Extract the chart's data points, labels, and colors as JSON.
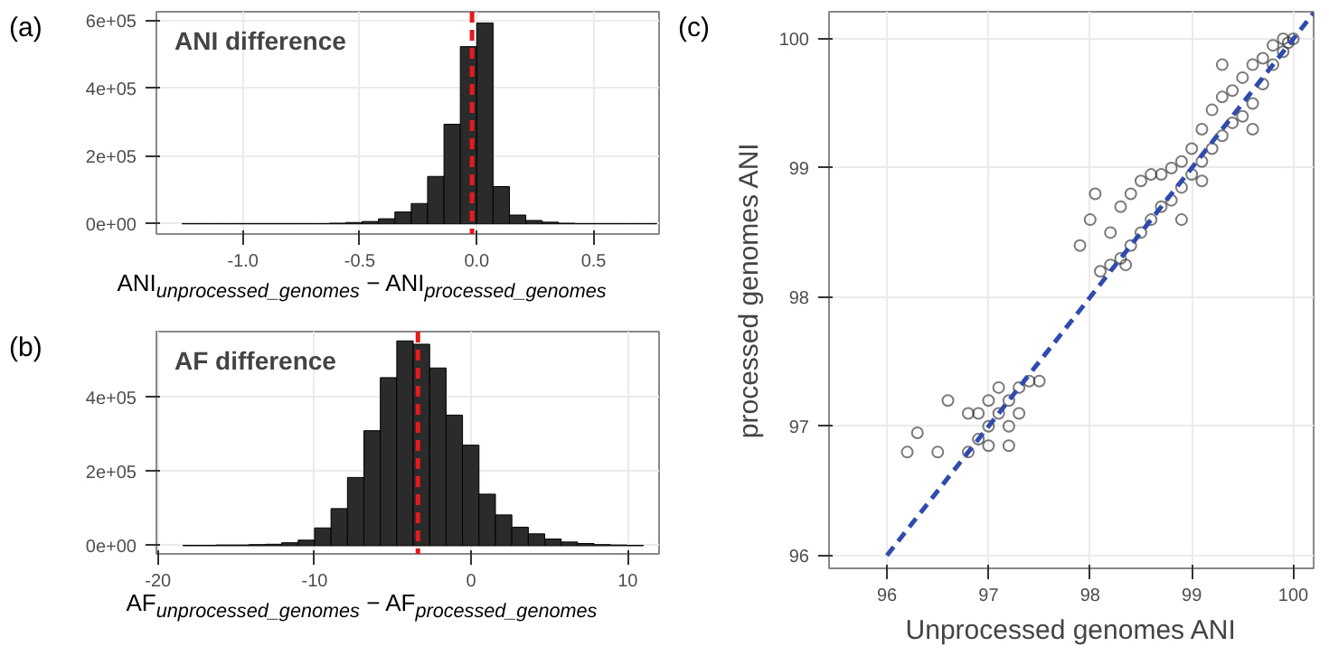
{
  "chart_data": [
    {
      "type": "histogram",
      "title": "ANI difference",
      "xlabel": "ANI$_{unprocessed_genomes}$ − ANI$_{processed_genomes}$",
      "annotations": [
        "(a)"
      ],
      "bins": [
        -1.26,
        -1.19,
        -1.12,
        -1.05,
        -0.98,
        -0.91,
        -0.84,
        -0.77,
        -0.7,
        -0.63,
        -0.56,
        -0.49,
        -0.42,
        -0.35,
        -0.28,
        -0.21,
        -0.14,
        -0.07,
        0.0,
        0.07,
        0.14,
        0.21,
        0.28,
        0.35,
        0.42,
        0.49,
        0.56,
        0.63,
        0.7,
        0.77
      ],
      "values": [
        1000,
        1000,
        1000,
        1000,
        1000,
        1000,
        1000,
        1000,
        1000,
        2000,
        4000,
        7000,
        15000,
        35000,
        60000,
        140000,
        294000,
        523000,
        593000,
        110000,
        26000,
        10000,
        5000,
        2000,
        1000,
        1000,
        1000,
        1000,
        1000
      ],
      "color": "#2b2b2b",
      "xlim": [
        -1.37,
        0.78
      ],
      "ylim": [
        -30000,
        626000
      ],
      "xticks": [
        {
          "value": -1.0,
          "label": "-1.0"
        },
        -0.5,
        {
          "value": 0,
          "label": "0.0"
        },
        0.5
      ],
      "yticks": [
        {
          "value": 0,
          "label": "0e+00"
        },
        {
          "value": 200000,
          "label": "2e+05"
        },
        {
          "value": 400000,
          "label": "4e+05"
        },
        {
          "value": 600000,
          "label": "6e+05"
        }
      ],
      "ref_lines": [
        {
          "axis": "x",
          "value": -0.02,
          "color": "#e41a1c",
          "line_style": "dashed"
        }
      ],
      "grid": true
    },
    {
      "type": "histogram",
      "title": "AF difference",
      "xlabel": "AF$_{unprocessed_genomes}$ − AF$_{processed_genomes}$",
      "annotations": [
        "(b)"
      ],
      "bins": [
        -18.4,
        -17.35,
        -16.3,
        -15.25,
        -14.2,
        -13.15,
        -12.1,
        -11.05,
        -10.0,
        -8.95,
        -7.9,
        -6.85,
        -5.8,
        -4.75,
        -3.7,
        -2.65,
        -1.6,
        -0.55,
        0.5,
        1.55,
        2.6,
        3.65,
        4.7,
        5.75,
        6.8,
        7.85,
        8.9,
        9.95,
        11.0
      ],
      "values": [
        1000,
        1000,
        2000,
        2000,
        3000,
        4000,
        8000,
        15000,
        48000,
        100000,
        184000,
        310000,
        453000,
        552000,
        543000,
        479000,
        352000,
        271000,
        139000,
        83000,
        50000,
        32000,
        18000,
        10000,
        6000,
        3000,
        2000,
        1000
      ],
      "color": "#2b2b2b",
      "xlim": [
        -20.1,
        12.0
      ],
      "ylim": [
        -22000,
        577000
      ],
      "xticks": [
        -20,
        -10,
        0,
        10
      ],
      "yticks": [
        {
          "value": 0,
          "label": "0e+00"
        },
        {
          "value": 200000,
          "label": "2e+05"
        },
        {
          "value": 400000,
          "label": "4e+05"
        }
      ],
      "ref_lines": [
        {
          "axis": "x",
          "value": -3.4,
          "color": "#e41a1c",
          "line_style": "dashed"
        }
      ],
      "grid": true
    },
    {
      "type": "scatter",
      "xlabel": "Unprocessed genomes ANI",
      "ylabel": "processed genomes ANI",
      "annotations": [
        "(c)"
      ],
      "xlim": [
        95.43,
        100.2
      ],
      "ylim": [
        95.9,
        100.21
      ],
      "xticks": [
        96,
        97,
        98,
        99,
        100
      ],
      "yticks": [
        96,
        97,
        98,
        99,
        100
      ],
      "grid": true,
      "marker": "circle",
      "series": [
        {
          "type": "scatter",
          "color": "#222222",
          "x": [
            98.2,
            98.2,
            98.3,
            98.3,
            98.4,
            98.4,
            98.5,
            98.5,
            98.6,
            98.6,
            98.7,
            98.7,
            98.8,
            98.8,
            98.9,
            98.9,
            99.0,
            99.0,
            99.1,
            99.1,
            99.2,
            99.2,
            99.3,
            99.3,
            99.4,
            99.4,
            99.5,
            99.5,
            99.6,
            99.6,
            99.7,
            99.7,
            99.8,
            99.8,
            99.9,
            99.9,
            100.0,
            99.95,
            98.0,
            97.9,
            98.1,
            98.35,
            98.9,
            99.1,
            99.6,
            99.3,
            98.05,
            96.8,
            96.9,
            97.0,
            97.1,
            97.2,
            97.3,
            97.4,
            96.9,
            97.0,
            97.1,
            97.2,
            97.3,
            96.5,
            96.3,
            96.2,
            96.6,
            97.5,
            97.2,
            96.8,
            97.0
          ],
          "values": [
            98.25,
            98.5,
            98.3,
            98.7,
            98.4,
            98.8,
            98.5,
            98.9,
            98.6,
            98.95,
            98.7,
            98.95,
            98.75,
            99.0,
            98.85,
            99.05,
            98.95,
            99.15,
            99.05,
            99.3,
            99.15,
            99.45,
            99.25,
            99.55,
            99.35,
            99.6,
            99.4,
            99.7,
            99.5,
            99.8,
            99.65,
            99.85,
            99.8,
            99.95,
            99.9,
            100.0,
            100.0,
            99.97,
            98.6,
            98.4,
            98.2,
            98.25,
            98.6,
            98.9,
            99.3,
            99.8,
            98.8,
            96.8,
            96.9,
            97.0,
            97.1,
            97.2,
            97.3,
            97.35,
            97.1,
            97.2,
            97.3,
            97.0,
            97.1,
            96.8,
            96.95,
            96.8,
            97.2,
            97.35,
            96.85,
            97.1,
            96.85
          ]
        },
        {
          "type": "line",
          "color": "#2e4bad",
          "line_style": "dashed",
          "marker": "none",
          "x": [
            96,
            100.2
          ],
          "values": [
            96,
            100.2
          ]
        }
      ]
    }
  ]
}
